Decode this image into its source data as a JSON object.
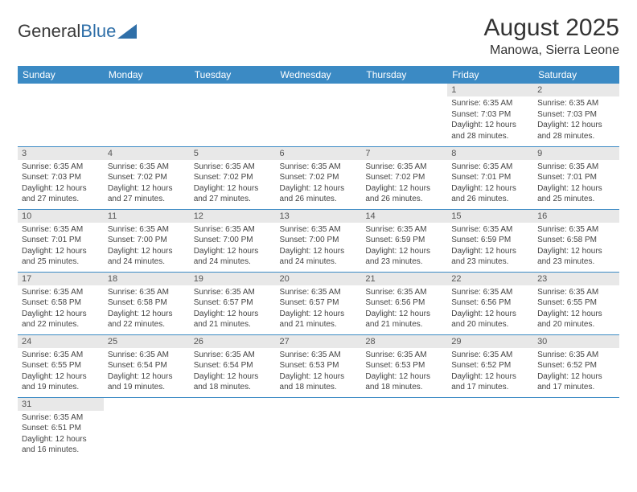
{
  "brand": {
    "text1": "General",
    "text2": "Blue"
  },
  "title": "August 2025",
  "location": "Manowa, Sierra Leone",
  "colors": {
    "header_bg": "#3b8ac4",
    "header_text": "#ffffff",
    "daynum_bg": "#e8e8e8",
    "border": "#3b8ac4",
    "logo_blue": "#2f6fa8",
    "text": "#333333"
  },
  "weekdays": [
    "Sunday",
    "Monday",
    "Tuesday",
    "Wednesday",
    "Thursday",
    "Friday",
    "Saturday"
  ],
  "weeks": [
    [
      null,
      null,
      null,
      null,
      null,
      {
        "n": "1",
        "sunrise": "Sunrise: 6:35 AM",
        "sunset": "Sunset: 7:03 PM",
        "daylight": "Daylight: 12 hours and 28 minutes."
      },
      {
        "n": "2",
        "sunrise": "Sunrise: 6:35 AM",
        "sunset": "Sunset: 7:03 PM",
        "daylight": "Daylight: 12 hours and 28 minutes."
      }
    ],
    [
      {
        "n": "3",
        "sunrise": "Sunrise: 6:35 AM",
        "sunset": "Sunset: 7:03 PM",
        "daylight": "Daylight: 12 hours and 27 minutes."
      },
      {
        "n": "4",
        "sunrise": "Sunrise: 6:35 AM",
        "sunset": "Sunset: 7:02 PM",
        "daylight": "Daylight: 12 hours and 27 minutes."
      },
      {
        "n": "5",
        "sunrise": "Sunrise: 6:35 AM",
        "sunset": "Sunset: 7:02 PM",
        "daylight": "Daylight: 12 hours and 27 minutes."
      },
      {
        "n": "6",
        "sunrise": "Sunrise: 6:35 AM",
        "sunset": "Sunset: 7:02 PM",
        "daylight": "Daylight: 12 hours and 26 minutes."
      },
      {
        "n": "7",
        "sunrise": "Sunrise: 6:35 AM",
        "sunset": "Sunset: 7:02 PM",
        "daylight": "Daylight: 12 hours and 26 minutes."
      },
      {
        "n": "8",
        "sunrise": "Sunrise: 6:35 AM",
        "sunset": "Sunset: 7:01 PM",
        "daylight": "Daylight: 12 hours and 26 minutes."
      },
      {
        "n": "9",
        "sunrise": "Sunrise: 6:35 AM",
        "sunset": "Sunset: 7:01 PM",
        "daylight": "Daylight: 12 hours and 25 minutes."
      }
    ],
    [
      {
        "n": "10",
        "sunrise": "Sunrise: 6:35 AM",
        "sunset": "Sunset: 7:01 PM",
        "daylight": "Daylight: 12 hours and 25 minutes."
      },
      {
        "n": "11",
        "sunrise": "Sunrise: 6:35 AM",
        "sunset": "Sunset: 7:00 PM",
        "daylight": "Daylight: 12 hours and 24 minutes."
      },
      {
        "n": "12",
        "sunrise": "Sunrise: 6:35 AM",
        "sunset": "Sunset: 7:00 PM",
        "daylight": "Daylight: 12 hours and 24 minutes."
      },
      {
        "n": "13",
        "sunrise": "Sunrise: 6:35 AM",
        "sunset": "Sunset: 7:00 PM",
        "daylight": "Daylight: 12 hours and 24 minutes."
      },
      {
        "n": "14",
        "sunrise": "Sunrise: 6:35 AM",
        "sunset": "Sunset: 6:59 PM",
        "daylight": "Daylight: 12 hours and 23 minutes."
      },
      {
        "n": "15",
        "sunrise": "Sunrise: 6:35 AM",
        "sunset": "Sunset: 6:59 PM",
        "daylight": "Daylight: 12 hours and 23 minutes."
      },
      {
        "n": "16",
        "sunrise": "Sunrise: 6:35 AM",
        "sunset": "Sunset: 6:58 PM",
        "daylight": "Daylight: 12 hours and 23 minutes."
      }
    ],
    [
      {
        "n": "17",
        "sunrise": "Sunrise: 6:35 AM",
        "sunset": "Sunset: 6:58 PM",
        "daylight": "Daylight: 12 hours and 22 minutes."
      },
      {
        "n": "18",
        "sunrise": "Sunrise: 6:35 AM",
        "sunset": "Sunset: 6:58 PM",
        "daylight": "Daylight: 12 hours and 22 minutes."
      },
      {
        "n": "19",
        "sunrise": "Sunrise: 6:35 AM",
        "sunset": "Sunset: 6:57 PM",
        "daylight": "Daylight: 12 hours and 21 minutes."
      },
      {
        "n": "20",
        "sunrise": "Sunrise: 6:35 AM",
        "sunset": "Sunset: 6:57 PM",
        "daylight": "Daylight: 12 hours and 21 minutes."
      },
      {
        "n": "21",
        "sunrise": "Sunrise: 6:35 AM",
        "sunset": "Sunset: 6:56 PM",
        "daylight": "Daylight: 12 hours and 21 minutes."
      },
      {
        "n": "22",
        "sunrise": "Sunrise: 6:35 AM",
        "sunset": "Sunset: 6:56 PM",
        "daylight": "Daylight: 12 hours and 20 minutes."
      },
      {
        "n": "23",
        "sunrise": "Sunrise: 6:35 AM",
        "sunset": "Sunset: 6:55 PM",
        "daylight": "Daylight: 12 hours and 20 minutes."
      }
    ],
    [
      {
        "n": "24",
        "sunrise": "Sunrise: 6:35 AM",
        "sunset": "Sunset: 6:55 PM",
        "daylight": "Daylight: 12 hours and 19 minutes."
      },
      {
        "n": "25",
        "sunrise": "Sunrise: 6:35 AM",
        "sunset": "Sunset: 6:54 PM",
        "daylight": "Daylight: 12 hours and 19 minutes."
      },
      {
        "n": "26",
        "sunrise": "Sunrise: 6:35 AM",
        "sunset": "Sunset: 6:54 PM",
        "daylight": "Daylight: 12 hours and 18 minutes."
      },
      {
        "n": "27",
        "sunrise": "Sunrise: 6:35 AM",
        "sunset": "Sunset: 6:53 PM",
        "daylight": "Daylight: 12 hours and 18 minutes."
      },
      {
        "n": "28",
        "sunrise": "Sunrise: 6:35 AM",
        "sunset": "Sunset: 6:53 PM",
        "daylight": "Daylight: 12 hours and 18 minutes."
      },
      {
        "n": "29",
        "sunrise": "Sunrise: 6:35 AM",
        "sunset": "Sunset: 6:52 PM",
        "daylight": "Daylight: 12 hours and 17 minutes."
      },
      {
        "n": "30",
        "sunrise": "Sunrise: 6:35 AM",
        "sunset": "Sunset: 6:52 PM",
        "daylight": "Daylight: 12 hours and 17 minutes."
      }
    ],
    [
      {
        "n": "31",
        "sunrise": "Sunrise: 6:35 AM",
        "sunset": "Sunset: 6:51 PM",
        "daylight": "Daylight: 12 hours and 16 minutes."
      },
      null,
      null,
      null,
      null,
      null,
      null
    ]
  ]
}
